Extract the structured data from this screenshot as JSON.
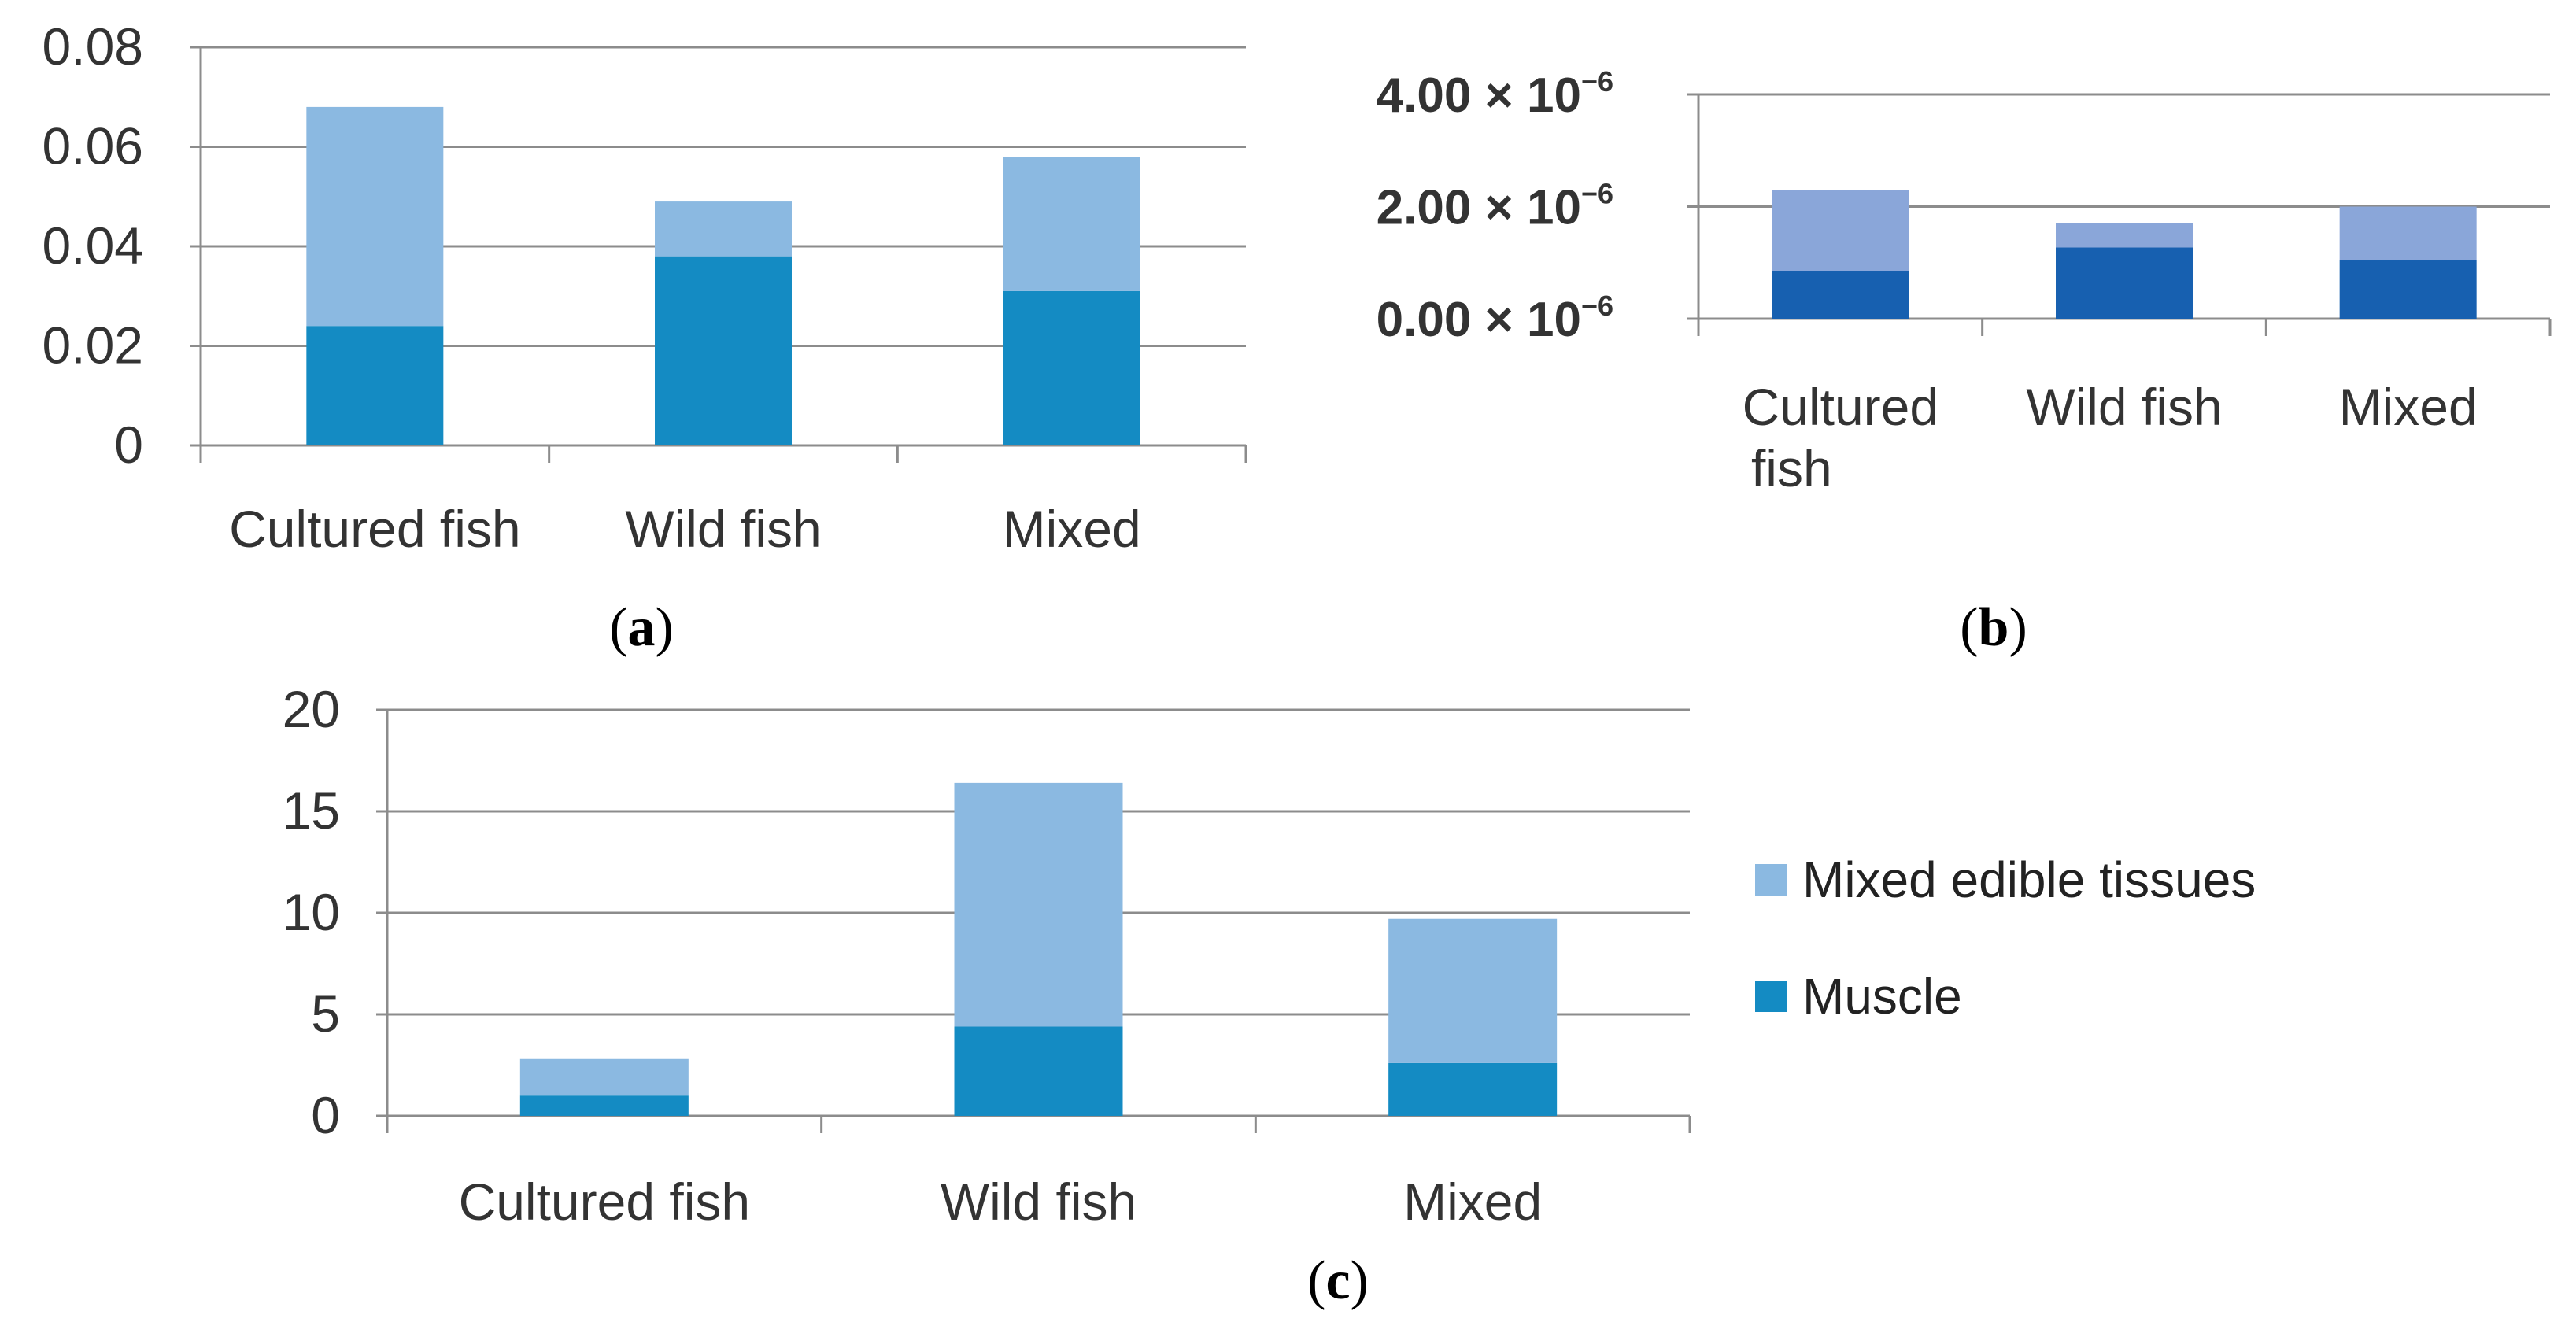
{
  "chart_data": [
    {
      "id": "a",
      "type": "bar",
      "stacked": true,
      "categories": [
        "Cultured fish",
        "Wild fish",
        "Mixed"
      ],
      "series": [
        {
          "name": "Muscle",
          "values": [
            0.024,
            0.038,
            0.031
          ],
          "color": "#148bc3"
        },
        {
          "name": "Mixed edible tissues",
          "values": [
            0.044,
            0.011,
            0.027
          ],
          "color": "#8bb9e1"
        }
      ],
      "yticks": [
        "0",
        "0.02",
        "0.04",
        "0.06",
        "0.08"
      ],
      "ylim": [
        0,
        0.08
      ],
      "grid": true,
      "caption_letter": "a"
    },
    {
      "id": "b",
      "type": "bar",
      "stacked": true,
      "categories": [
        "Cultured\nfish",
        "Wild fish",
        "Mixed"
      ],
      "series": [
        {
          "name": "Muscle",
          "values": [
            8.5e-07,
            1.27e-06,
            1.05e-06
          ],
          "color": "#1760b0"
        },
        {
          "name": "Mixed edible tissues",
          "values": [
            1.45e-06,
            4.3e-07,
            9.5e-07
          ],
          "color": "#8aa6d9"
        }
      ],
      "yticks": [
        {
          "mantissa": "0.00",
          "base": "× 10",
          "exp": "−6"
        },
        {
          "mantissa": "2.00",
          "base": "× 10",
          "exp": "−6"
        },
        {
          "mantissa": "4.00",
          "base": "× 10",
          "exp": "−6"
        }
      ],
      "ylim": [
        0,
        4e-06
      ],
      "grid": true,
      "caption_letter": "b"
    },
    {
      "id": "c",
      "type": "bar",
      "stacked": true,
      "categories": [
        "Cultured fish",
        "Wild fish",
        "Mixed"
      ],
      "series": [
        {
          "name": "Muscle",
          "values": [
            1.0,
            4.4,
            2.6
          ],
          "color": "#148bc3"
        },
        {
          "name": "Mixed edible tissues",
          "values": [
            1.8,
            12.0,
            7.1
          ],
          "color": "#8bb9e1"
        }
      ],
      "yticks": [
        "0",
        "5",
        "10",
        "15",
        "20"
      ],
      "ylim": [
        0,
        20
      ],
      "grid": true,
      "legend": {
        "position": "right",
        "entries": [
          "Mixed edible tissues",
          "Muscle"
        ]
      },
      "caption_letter": "c"
    }
  ]
}
